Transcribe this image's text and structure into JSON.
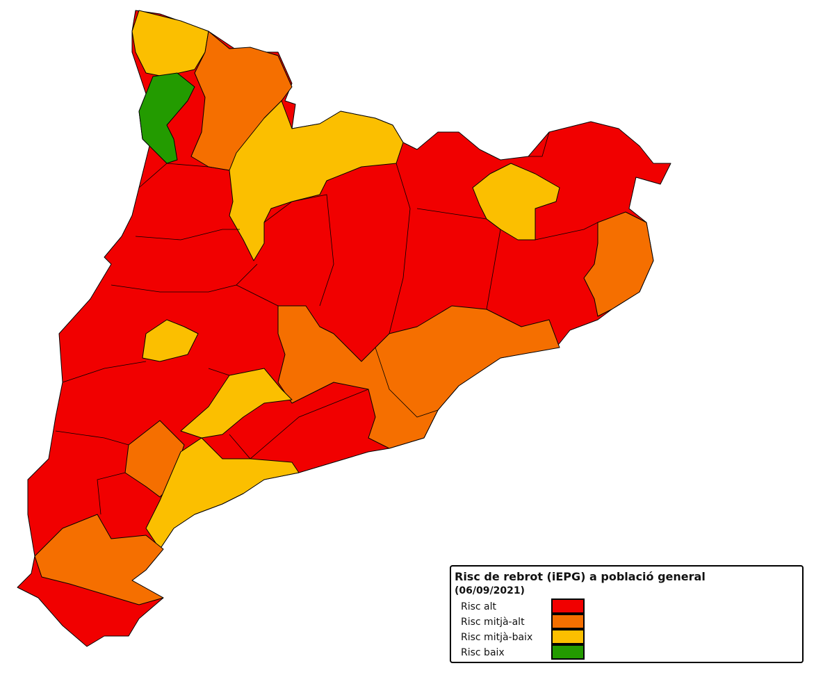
{
  "legend": {
    "title": "Risc de rebrot (iEPG) a població general",
    "subtitle": "(06/09/2021)",
    "items": [
      {
        "label": "Risc alt",
        "color": "#f10000"
      },
      {
        "label": "Risc mitjà-alt",
        "color": "#f56f00"
      },
      {
        "label": "Risc mitjà-baix",
        "color": "#fbbf00"
      },
      {
        "label": "Risc baix",
        "color": "#239b00"
      }
    ]
  }
}
